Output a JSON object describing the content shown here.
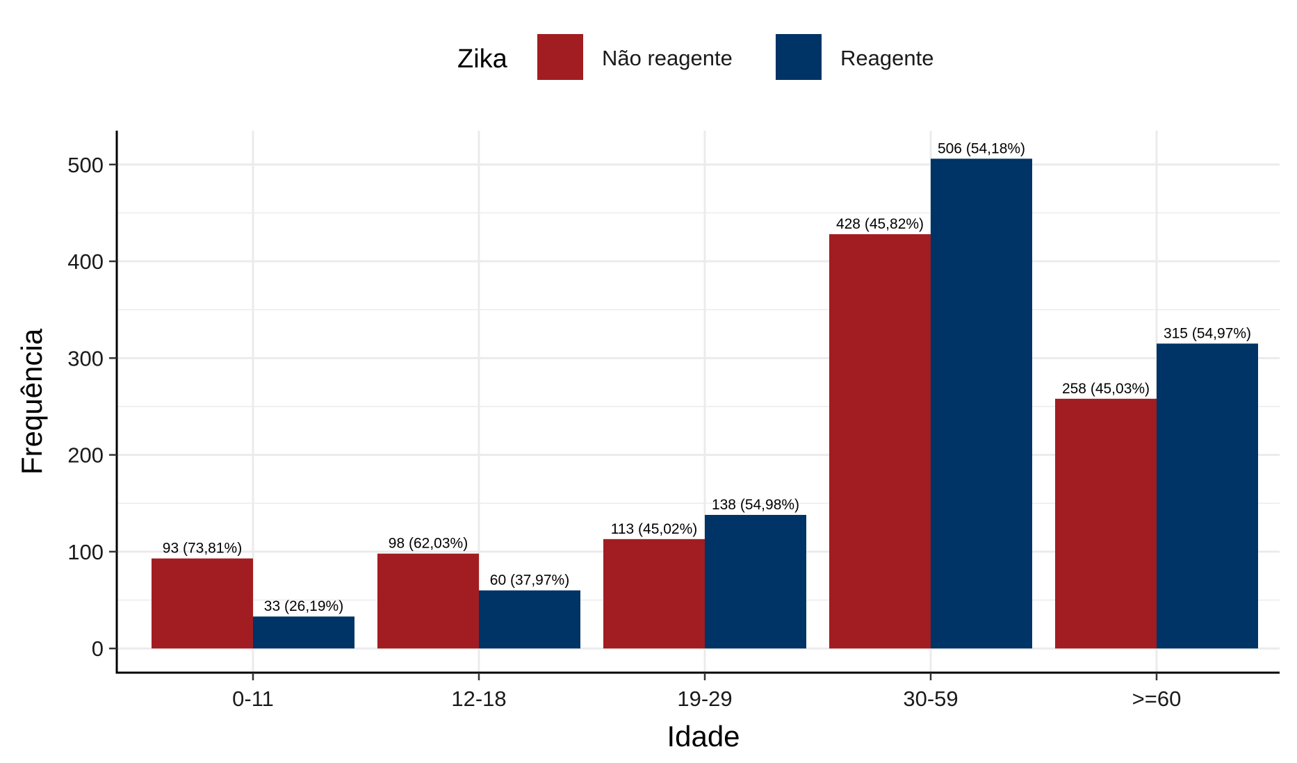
{
  "chart_data": {
    "type": "bar",
    "xlabel": "Idade",
    "ylabel": "Frequência",
    "categories": [
      "0-11",
      "12-18",
      "19-29",
      "30-59",
      ">=60"
    ],
    "ylim": [
      -25,
      535
    ],
    "yticks": [
      0,
      100,
      200,
      300,
      400,
      500
    ],
    "grid": true,
    "legend": {
      "title": "Zika",
      "position": "top"
    },
    "series": [
      {
        "name": "Não reagente",
        "color": "#A11D21",
        "values": [
          93,
          98,
          113,
          428,
          258
        ],
        "labels": [
          "93 (73,81%)",
          "98 (62,03%)",
          "113 (45,02%)",
          "428 (45,82%)",
          "258 (45,03%)"
        ]
      },
      {
        "name": "Reagente",
        "color": "#003366",
        "values": [
          33,
          60,
          138,
          506,
          315
        ],
        "labels": [
          "33 (26,19%)",
          "60 (37,97%)",
          "138 (54,98%)",
          "506 (54,18%)",
          "315 (54,97%)"
        ]
      }
    ]
  }
}
